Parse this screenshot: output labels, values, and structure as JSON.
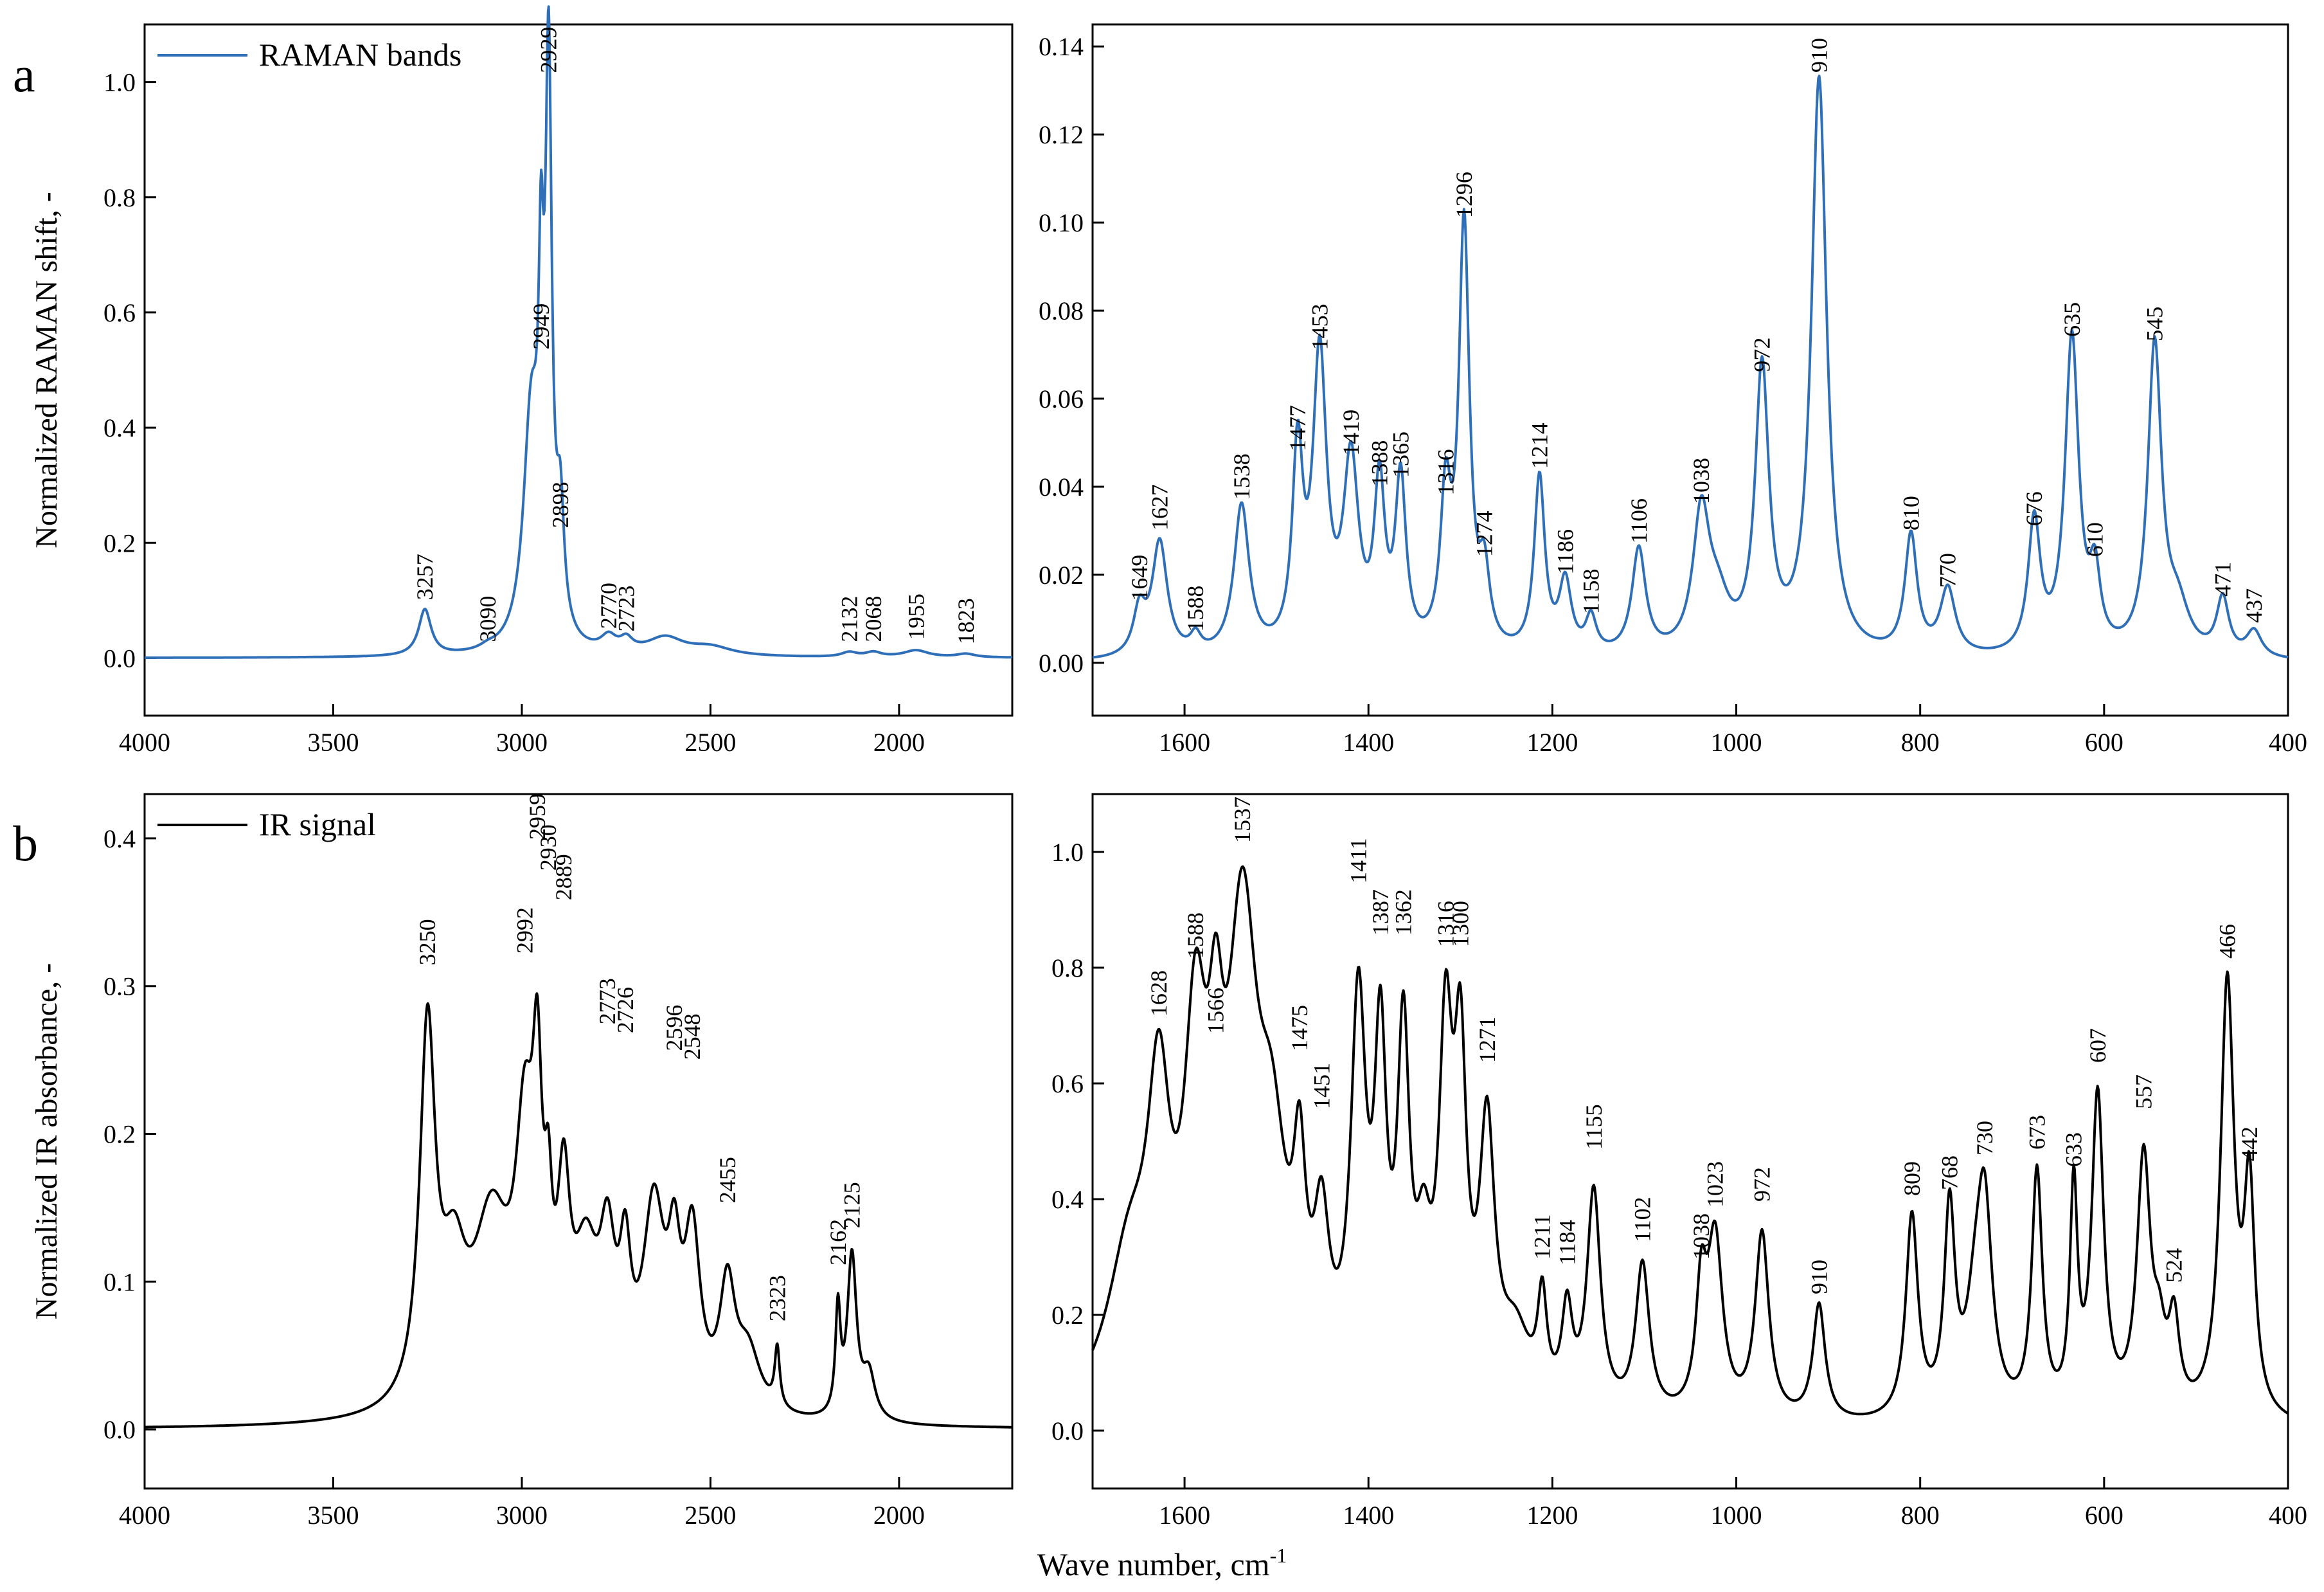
{
  "figure": {
    "panel_labels": [
      "a",
      "b"
    ],
    "shared_xlabel": "Wave number, cm",
    "shared_xlabel_sup": "-1",
    "raman_color": "#2f6fb8",
    "ir_color": "#000000"
  },
  "chart_data": [
    {
      "id": "raman-high",
      "type": "line",
      "title": "",
      "legend": "RAMAN bands",
      "legend_position": "top-left",
      "ylabel": "Normalized RAMAN shift, -",
      "xlabel": "",
      "xlim": [
        4000,
        1700
      ],
      "ylim": [
        -0.1,
        1.1
      ],
      "xticks": [
        4000,
        3500,
        3000,
        2500,
        2000
      ],
      "yticks": [
        0.0,
        0.2,
        0.4,
        0.6,
        0.8,
        1.0
      ],
      "ytick_labels": [
        "0.0",
        "0.2",
        "0.4",
        "0.6",
        "0.8",
        "1.0"
      ],
      "series": [
        {
          "name": "RAMAN bands",
          "peaks": [
            [
              3257,
              0.08,
              20
            ],
            [
              3090,
              0.006,
              25
            ],
            [
              2975,
              0.4,
              25
            ],
            [
              2949,
              0.45,
              8
            ],
            [
              2929,
              0.95,
              10
            ],
            [
              2898,
              0.2,
              12
            ],
            [
              2770,
              0.025,
              25
            ],
            [
              2723,
              0.02,
              20
            ],
            [
              2620,
              0.03,
              60
            ],
            [
              2500,
              0.015,
              70
            ],
            [
              2132,
              0.008,
              25
            ],
            [
              2068,
              0.008,
              25
            ],
            [
              1955,
              0.012,
              40
            ],
            [
              1823,
              0.006,
              30
            ]
          ]
        }
      ],
      "annotations": [
        {
          "text": "3257",
          "x": 3257,
          "y": 0.085
        },
        {
          "text": "3090",
          "x": 3090,
          "y": 0.012
        },
        {
          "text": "2949",
          "x": 2949,
          "y": 0.52
        },
        {
          "text": "2929",
          "x": 2929,
          "y": 1.0
        },
        {
          "text": "2898",
          "x": 2898,
          "y": 0.21
        },
        {
          "text": "2770",
          "x": 2770,
          "y": 0.035
        },
        {
          "text": "2723",
          "x": 2723,
          "y": 0.03
        },
        {
          "text": "2132",
          "x": 2132,
          "y": 0.012
        },
        {
          "text": "2068",
          "x": 2068,
          "y": 0.012
        },
        {
          "text": "1955",
          "x": 1955,
          "y": 0.016
        },
        {
          "text": "1823",
          "x": 1823,
          "y": 0.008
        }
      ]
    },
    {
      "id": "raman-low",
      "type": "line",
      "title": "",
      "legend": "",
      "ylabel": "",
      "xlabel": "",
      "xlim": [
        1700,
        400
      ],
      "ylim": [
        -0.012,
        0.145
      ],
      "xticks": [
        1600,
        1400,
        1200,
        1000,
        800,
        600,
        400
      ],
      "yticks": [
        0.0,
        0.02,
        0.04,
        0.06,
        0.08,
        0.1,
        0.12,
        0.14
      ],
      "ytick_labels": [
        "0.00",
        "0.02",
        "0.04",
        "0.06",
        "0.08",
        "0.10",
        "0.12",
        "0.14"
      ],
      "series": [
        {
          "name": "RAMAN bands",
          "peaks": [
            [
              1649,
              0.01,
              8
            ],
            [
              1627,
              0.026,
              10
            ],
            [
              1588,
              0.004,
              7
            ],
            [
              1538,
              0.034,
              10
            ],
            [
              1477,
              0.044,
              7
            ],
            [
              1453,
              0.066,
              9
            ],
            [
              1419,
              0.042,
              10
            ],
            [
              1388,
              0.036,
              7
            ],
            [
              1365,
              0.038,
              7
            ],
            [
              1316,
              0.033,
              7
            ],
            [
              1296,
              0.096,
              7
            ],
            [
              1274,
              0.016,
              7
            ],
            [
              1214,
              0.04,
              7
            ],
            [
              1186,
              0.016,
              8
            ],
            [
              1158,
              0.008,
              7
            ],
            [
              1106,
              0.024,
              9
            ],
            [
              1038,
              0.031,
              11
            ],
            [
              1020,
              0.01,
              15
            ],
            [
              972,
              0.064,
              9
            ],
            [
              910,
              0.131,
              10
            ],
            [
              810,
              0.027,
              8
            ],
            [
              770,
              0.015,
              10
            ],
            [
              676,
              0.03,
              8
            ],
            [
              635,
              0.072,
              9
            ],
            [
              610,
              0.016,
              7
            ],
            [
              545,
              0.07,
              9
            ],
            [
              520,
              0.01,
              15
            ],
            [
              471,
              0.013,
              8
            ],
            [
              437,
              0.006,
              10
            ]
          ]
        }
      ],
      "annotations": [
        {
          "text": "1649",
          "x": 1649,
          "y": 0.012
        },
        {
          "text": "1627",
          "x": 1627,
          "y": 0.028
        },
        {
          "text": "1588",
          "x": 1588,
          "y": 0.005
        },
        {
          "text": "1538",
          "x": 1538,
          "y": 0.035
        },
        {
          "text": "1477",
          "x": 1477,
          "y": 0.046
        },
        {
          "text": "1453",
          "x": 1453,
          "y": 0.069
        },
        {
          "text": "1419",
          "x": 1419,
          "y": 0.045
        },
        {
          "text": "1388",
          "x": 1388,
          "y": 0.038
        },
        {
          "text": "1365",
          "x": 1365,
          "y": 0.04
        },
        {
          "text": "1316",
          "x": 1316,
          "y": 0.036
        },
        {
          "text": "1296",
          "x": 1296,
          "y": 0.099
        },
        {
          "text": "1274",
          "x": 1274,
          "y": 0.022
        },
        {
          "text": "1214",
          "x": 1214,
          "y": 0.042
        },
        {
          "text": "1186",
          "x": 1186,
          "y": 0.018
        },
        {
          "text": "1158",
          "x": 1158,
          "y": 0.009
        },
        {
          "text": "1106",
          "x": 1106,
          "y": 0.025
        },
        {
          "text": "1038",
          "x": 1038,
          "y": 0.034
        },
        {
          "text": "972",
          "x": 972,
          "y": 0.064
        },
        {
          "text": "910",
          "x": 910,
          "y": 0.132
        },
        {
          "text": "810",
          "x": 810,
          "y": 0.028
        },
        {
          "text": "770",
          "x": 770,
          "y": 0.015
        },
        {
          "text": "676",
          "x": 676,
          "y": 0.029
        },
        {
          "text": "635",
          "x": 635,
          "y": 0.072
        },
        {
          "text": "610",
          "x": 610,
          "y": 0.022
        },
        {
          "text": "545",
          "x": 545,
          "y": 0.071
        },
        {
          "text": "471",
          "x": 471,
          "y": 0.013
        },
        {
          "text": "437",
          "x": 437,
          "y": 0.007
        }
      ]
    },
    {
      "id": "ir-high",
      "type": "line",
      "title": "",
      "legend": "IR signal",
      "legend_position": "top-left",
      "ylabel": "Normalized IR absorbance, -",
      "xlabel": "",
      "xlim": [
        4000,
        1700
      ],
      "ylim": [
        -0.04,
        0.43
      ],
      "xticks": [
        4000,
        3500,
        3000,
        2500,
        2000
      ],
      "yticks": [
        0.0,
        0.1,
        0.2,
        0.3,
        0.4
      ],
      "ytick_labels": [
        "0.0",
        "0.1",
        "0.2",
        "0.3",
        "0.4"
      ],
      "series": [
        {
          "name": "IR signal",
          "peaks": [
            [
              3250,
              0.25,
              25
            ],
            [
              3180,
              0.08,
              40
            ],
            [
              3080,
              0.12,
              60
            ],
            [
              2992,
              0.16,
              30
            ],
            [
              2959,
              0.16,
              15
            ],
            [
              2930,
              0.08,
              12
            ],
            [
              2889,
              0.12,
              20
            ],
            [
              2830,
              0.09,
              40
            ],
            [
              2773,
              0.09,
              25
            ],
            [
              2726,
              0.08,
              18
            ],
            [
              2650,
              0.13,
              35
            ],
            [
              2596,
              0.08,
              20
            ],
            [
              2548,
              0.11,
              25
            ],
            [
              2455,
              0.08,
              25
            ],
            [
              2400,
              0.04,
              40
            ],
            [
              2323,
              0.04,
              8
            ],
            [
              2162,
              0.07,
              8
            ],
            [
              2125,
              0.11,
              15
            ],
            [
              2080,
              0.03,
              20
            ]
          ]
        }
      ],
      "annotations": [
        {
          "text": "3250",
          "x": 3250,
          "y": 0.308
        },
        {
          "text": "2992",
          "x": 2992,
          "y": 0.316
        },
        {
          "text": "2959",
          "x": 2959,
          "y": 0.393
        },
        {
          "text": "2930",
          "x": 2930,
          "y": 0.372
        },
        {
          "text": "2889",
          "x": 2889,
          "y": 0.352
        },
        {
          "text": "2773",
          "x": 2773,
          "y": 0.268
        },
        {
          "text": "2726",
          "x": 2726,
          "y": 0.262
        },
        {
          "text": "2596",
          "x": 2596,
          "y": 0.25
        },
        {
          "text": "2548",
          "x": 2548,
          "y": 0.244
        },
        {
          "text": "2455",
          "x": 2455,
          "y": 0.147
        },
        {
          "text": "2323",
          "x": 2323,
          "y": 0.067
        },
        {
          "text": "2162",
          "x": 2162,
          "y": 0.105
        },
        {
          "text": "2125",
          "x": 2125,
          "y": 0.13
        }
      ]
    },
    {
      "id": "ir-low",
      "type": "line",
      "title": "",
      "legend": "",
      "ylabel": "",
      "xlabel": "",
      "xlim": [
        1700,
        400
      ],
      "ylim": [
        -0.1,
        1.1
      ],
      "xticks": [
        1600,
        1400,
        1200,
        1000,
        800,
        600,
        400
      ],
      "yticks": [
        0.0,
        0.2,
        0.4,
        0.6,
        0.8,
        1.0
      ],
      "ytick_labels": [
        "0.0",
        "0.2",
        "0.4",
        "0.6",
        "0.8",
        "1.0"
      ],
      "series": [
        {
          "name": "IR signal",
          "peaks": [
            [
              1660,
              0.25,
              30
            ],
            [
              1628,
              0.45,
              15
            ],
            [
              1588,
              0.55,
              15
            ],
            [
              1566,
              0.35,
              10
            ],
            [
              1537,
              0.75,
              20
            ],
            [
              1505,
              0.35,
              20
            ],
            [
              1475,
              0.3,
              8
            ],
            [
              1451,
              0.25,
              10
            ],
            [
              1411,
              0.65,
              10
            ],
            [
              1387,
              0.55,
              8
            ],
            [
              1362,
              0.58,
              8
            ],
            [
              1340,
              0.2,
              10
            ],
            [
              1316,
              0.58,
              9
            ],
            [
              1300,
              0.52,
              8
            ],
            [
              1271,
              0.45,
              10
            ],
            [
              1240,
              0.12,
              20
            ],
            [
              1211,
              0.17,
              6
            ],
            [
              1184,
              0.16,
              7
            ],
            [
              1155,
              0.38,
              9
            ],
            [
              1102,
              0.26,
              9
            ],
            [
              1038,
              0.2,
              7
            ],
            [
              1023,
              0.3,
              10
            ],
            [
              972,
              0.32,
              9
            ],
            [
              910,
              0.2,
              8
            ],
            [
              809,
              0.35,
              8
            ],
            [
              768,
              0.35,
              7
            ],
            [
              740,
              0.15,
              12
            ],
            [
              730,
              0.33,
              10
            ],
            [
              673,
              0.42,
              7
            ],
            [
              633,
              0.38,
              5
            ],
            [
              607,
              0.55,
              8
            ],
            [
              557,
              0.44,
              9
            ],
            [
              540,
              0.1,
              8
            ],
            [
              524,
              0.15,
              7
            ],
            [
              466,
              0.75,
              9
            ],
            [
              442,
              0.38,
              7
            ]
          ]
        }
      ],
      "annotations": [
        {
          "text": "1628",
          "x": 1628,
          "y": 0.7
        },
        {
          "text": "1588",
          "x": 1588,
          "y": 0.8
        },
        {
          "text": "1566",
          "x": 1566,
          "y": 0.67
        },
        {
          "text": "1537",
          "x": 1537,
          "y": 1.0
        },
        {
          "text": "1475",
          "x": 1475,
          "y": 0.64
        },
        {
          "text": "1451",
          "x": 1451,
          "y": 0.54
        },
        {
          "text": "1411",
          "x": 1411,
          "y": 0.93
        },
        {
          "text": "1387",
          "x": 1387,
          "y": 0.84
        },
        {
          "text": "1362",
          "x": 1362,
          "y": 0.84
        },
        {
          "text": "1316",
          "x": 1316,
          "y": 0.82
        },
        {
          "text": "1300",
          "x": 1300,
          "y": 0.82
        },
        {
          "text": "1271",
          "x": 1271,
          "y": 0.62
        },
        {
          "text": "1211",
          "x": 1211,
          "y": 0.28
        },
        {
          "text": "1184",
          "x": 1184,
          "y": 0.27
        },
        {
          "text": "1155",
          "x": 1155,
          "y": 0.47
        },
        {
          "text": "1102",
          "x": 1102,
          "y": 0.31
        },
        {
          "text": "1038",
          "x": 1038,
          "y": 0.28
        },
        {
          "text": "1023",
          "x": 1023,
          "y": 0.37
        },
        {
          "text": "972",
          "x": 972,
          "y": 0.38
        },
        {
          "text": "910",
          "x": 910,
          "y": 0.22
        },
        {
          "text": "809",
          "x": 809,
          "y": 0.39
        },
        {
          "text": "768",
          "x": 768,
          "y": 0.4
        },
        {
          "text": "730",
          "x": 730,
          "y": 0.46
        },
        {
          "text": "673",
          "x": 673,
          "y": 0.47
        },
        {
          "text": "633",
          "x": 633,
          "y": 0.44
        },
        {
          "text": "607",
          "x": 607,
          "y": 0.62
        },
        {
          "text": "557",
          "x": 557,
          "y": 0.54
        },
        {
          "text": "524",
          "x": 524,
          "y": 0.24
        },
        {
          "text": "466",
          "x": 466,
          "y": 0.8
        },
        {
          "text": "442",
          "x": 442,
          "y": 0.45
        }
      ]
    }
  ]
}
